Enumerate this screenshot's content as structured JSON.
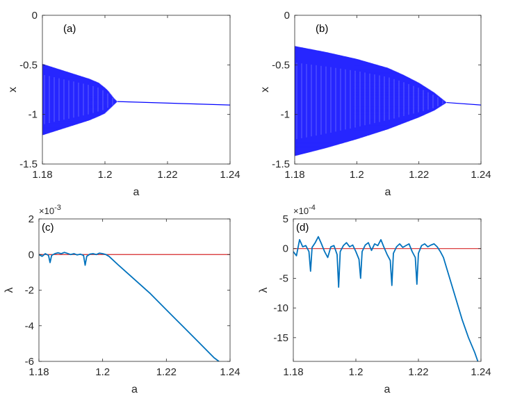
{
  "colors": {
    "bifurcation": "#0000ff",
    "lyapunov": "#0072bd",
    "zero_line": "#d62728",
    "axes": "#262626"
  },
  "chart_data": [
    {
      "panel": "(a)",
      "type": "scatter",
      "xlabel": "a",
      "ylabel": "x",
      "xlim": [
        1.18,
        1.24
      ],
      "ylim": [
        -1.5,
        0
      ],
      "xticks": [
        "1.18",
        "1.2",
        "1.22",
        "1.24"
      ],
      "yticks": [
        "0",
        "-0.5",
        "-1",
        "-1.5"
      ],
      "envelope": {
        "a": [
          1.18,
          1.185,
          1.19,
          1.195,
          1.198,
          1.2,
          1.201,
          1.202,
          1.203,
          1.204
        ],
        "upper": [
          -0.49,
          -0.54,
          -0.59,
          -0.64,
          -0.68,
          -0.73,
          -0.76,
          -0.8,
          -0.84,
          -0.87
        ],
        "lower": [
          -1.21,
          -1.16,
          -1.11,
          -1.06,
          -1.02,
          -0.99,
          -0.96,
          -0.93,
          -0.9,
          -0.87
        ]
      },
      "fixed_branch": {
        "a": [
          1.204,
          1.24
        ],
        "x": [
          -0.87,
          -0.905
        ]
      }
    },
    {
      "panel": "(b)",
      "type": "scatter",
      "xlabel": "a",
      "ylabel": "x",
      "xlim": [
        1.18,
        1.24
      ],
      "ylim": [
        -1.5,
        0
      ],
      "xticks": [
        "1.18",
        "1.2",
        "1.22",
        "1.24"
      ],
      "yticks": [
        "0",
        "-0.5",
        "-1",
        "-1.5"
      ],
      "envelope": {
        "a": [
          1.18,
          1.19,
          1.2,
          1.21,
          1.215,
          1.22,
          1.225,
          1.227,
          1.229
        ],
        "upper": [
          -0.31,
          -0.37,
          -0.44,
          -0.53,
          -0.6,
          -0.68,
          -0.78,
          -0.83,
          -0.88
        ],
        "lower": [
          -1.42,
          -1.34,
          -1.25,
          -1.15,
          -1.09,
          -1.03,
          -0.96,
          -0.92,
          -0.88
        ]
      },
      "fixed_branch": {
        "a": [
          1.229,
          1.24
        ],
        "x": [
          -0.88,
          -0.905
        ]
      }
    },
    {
      "panel": "(c)",
      "type": "line",
      "xlabel": "a",
      "ylabel": "λ",
      "y_exponent": "×10^-3",
      "xlim": [
        1.18,
        1.24
      ],
      "ylim": [
        -6,
        2
      ],
      "xticks": [
        "1.18",
        "1.2",
        "1.22",
        "1.24"
      ],
      "yticks": [
        "2",
        "0",
        "-2",
        "-4",
        "-6"
      ],
      "zero_line": 0,
      "series": [
        {
          "x": [
            1.18,
            1.181,
            1.182,
            1.183,
            1.1835,
            1.184,
            1.185,
            1.186,
            1.187,
            1.188,
            1.189,
            1.19,
            1.191,
            1.192,
            1.193,
            1.194,
            1.1945,
            1.195,
            1.196,
            1.197,
            1.198,
            1.199,
            1.2,
            1.201,
            1.202,
            1.205,
            1.21,
            1.215,
            1.22,
            1.225,
            1.23,
            1.235,
            1.2365
          ],
          "y": [
            0,
            -0.1,
            0.05,
            -0.05,
            -0.45,
            -0.05,
            0.05,
            0.1,
            0.05,
            0.12,
            0.06,
            0,
            0.05,
            -0.02,
            0.02,
            -0.05,
            -0.6,
            -0.1,
            0.02,
            0.05,
            0.0,
            0.08,
            0.05,
            0.0,
            -0.1,
            -0.6,
            -1.4,
            -2.2,
            -3.1,
            -4.0,
            -4.9,
            -5.8,
            -6.0
          ]
        }
      ]
    },
    {
      "panel": "(d)",
      "type": "line",
      "xlabel": "a",
      "ylabel": "λ",
      "y_exponent": "×10^-4",
      "xlim": [
        1.18,
        1.24
      ],
      "ylim": [
        -19,
        5
      ],
      "xticks": [
        "1.18",
        "1.2",
        "1.22",
        "1.24"
      ],
      "yticks": [
        "5",
        "0",
        "-5",
        "-10",
        "-15"
      ],
      "zero_line": 0,
      "series": [
        {
          "x": [
            1.18,
            1.181,
            1.182,
            1.183,
            1.184,
            1.185,
            1.1855,
            1.186,
            1.187,
            1.188,
            1.189,
            1.19,
            1.191,
            1.192,
            1.193,
            1.194,
            1.1945,
            1.195,
            1.196,
            1.197,
            1.198,
            1.199,
            1.2,
            1.201,
            1.2015,
            1.202,
            1.203,
            1.204,
            1.205,
            1.206,
            1.207,
            1.208,
            1.209,
            1.21,
            1.211,
            1.2115,
            1.212,
            1.213,
            1.214,
            1.215,
            1.216,
            1.217,
            1.218,
            1.219,
            1.2195,
            1.22,
            1.221,
            1.222,
            1.223,
            1.224,
            1.225,
            1.226,
            1.227,
            1.228,
            1.23,
            1.232,
            1.234,
            1.236,
            1.238,
            1.239
          ],
          "y": [
            -0.5,
            -1.2,
            1.5,
            0.3,
            0.5,
            -0.5,
            -3.8,
            0.2,
            1.0,
            2.0,
            0.8,
            -0.5,
            -1.5,
            0.3,
            0.5,
            -1.0,
            -6.5,
            -0.5,
            0.5,
            1.0,
            0.3,
            0.6,
            -0.5,
            -1.8,
            -5.0,
            -0.5,
            0.6,
            1.0,
            -0.3,
            0.8,
            0.5,
            1.5,
            0.2,
            -1.0,
            -2.0,
            -6.2,
            -0.8,
            0.3,
            0.8,
            0.2,
            0.5,
            0.8,
            -0.5,
            -1.5,
            -6.0,
            -0.8,
            0.5,
            0.8,
            0.3,
            0.6,
            0.8,
            0.3,
            -0.5,
            -1.5,
            -5.0,
            -8.5,
            -12.0,
            -15.0,
            -17.5,
            -19.0
          ]
        }
      ]
    }
  ]
}
